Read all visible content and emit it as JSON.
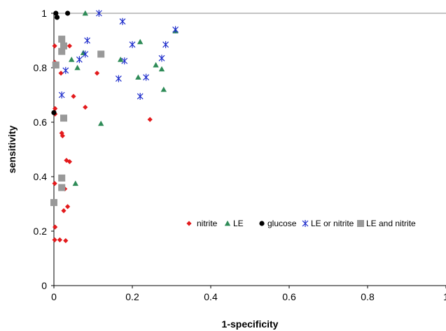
{
  "chart_data": {
    "type": "scatter",
    "title": "",
    "xlabel": "1-specificity",
    "ylabel": "sensitivity",
    "xlim": [
      0,
      1
    ],
    "ylim": [
      0,
      1
    ],
    "x_ticks": [
      "0",
      "0.2",
      "0.4",
      "0.6",
      "0.8",
      "1"
    ],
    "y_ticks": [
      "0",
      "0.2",
      "0.4",
      "0.6",
      "0.8",
      "1"
    ],
    "grid": false,
    "legend_position": "center-right",
    "series": [
      {
        "name": "nitrite",
        "marker": "diamond",
        "color": "#e31a1c",
        "points": [
          [
            0.002,
            0.88
          ],
          [
            0.002,
            0.82
          ],
          [
            0.003,
            0.65
          ],
          [
            0.003,
            0.63
          ],
          [
            0.002,
            0.375
          ],
          [
            0.003,
            0.215
          ],
          [
            0.002,
            0.168
          ],
          [
            0.015,
            0.168
          ],
          [
            0.018,
            0.78
          ],
          [
            0.02,
            0.56
          ],
          [
            0.022,
            0.55
          ],
          [
            0.028,
            0.355
          ],
          [
            0.025,
            0.275
          ],
          [
            0.032,
            0.46
          ],
          [
            0.04,
            0.455
          ],
          [
            0.035,
            0.29
          ],
          [
            0.03,
            0.165
          ],
          [
            0.04,
            0.88
          ],
          [
            0.05,
            0.695
          ],
          [
            0.08,
            0.655
          ],
          [
            0.11,
            0.78
          ],
          [
            0.245,
            0.61
          ]
        ]
      },
      {
        "name": "LE",
        "marker": "triangle",
        "color": "#2e8b57",
        "points": [
          [
            0.08,
            1.0
          ],
          [
            0.045,
            0.83
          ],
          [
            0.06,
            0.8
          ],
          [
            0.075,
            0.855
          ],
          [
            0.055,
            0.375
          ],
          [
            0.12,
            0.595
          ],
          [
            0.17,
            0.83
          ],
          [
            0.215,
            0.765
          ],
          [
            0.22,
            0.895
          ],
          [
            0.26,
            0.81
          ],
          [
            0.275,
            0.795
          ],
          [
            0.28,
            0.72
          ],
          [
            0.31,
            0.935
          ]
        ]
      },
      {
        "name": "glucose",
        "marker": "circle",
        "color": "#000000",
        "points": [
          [
            0.0,
            0.635
          ],
          [
            0.005,
            1.0
          ],
          [
            0.008,
            0.985
          ],
          [
            0.035,
            1.0
          ]
        ]
      },
      {
        "name": "LE or nitrite",
        "marker": "asterisk",
        "color": "#1f2ecc",
        "points": [
          [
            0.115,
            1.0
          ],
          [
            0.02,
            0.7
          ],
          [
            0.03,
            0.79
          ],
          [
            0.065,
            0.83
          ],
          [
            0.08,
            0.85
          ],
          [
            0.085,
            0.9
          ],
          [
            0.165,
            0.76
          ],
          [
            0.175,
            0.97
          ],
          [
            0.18,
            0.825
          ],
          [
            0.2,
            0.885
          ],
          [
            0.22,
            0.695
          ],
          [
            0.235,
            0.765
          ],
          [
            0.275,
            0.835
          ],
          [
            0.285,
            0.885
          ],
          [
            0.31,
            0.94
          ]
        ]
      },
      {
        "name": "LE and nitrite",
        "marker": "square",
        "color": "#999999",
        "points": [
          [
            0.0,
            0.305
          ],
          [
            0.005,
            0.81
          ],
          [
            0.02,
            0.905
          ],
          [
            0.02,
            0.86
          ],
          [
            0.025,
            0.88
          ],
          [
            0.025,
            0.615
          ],
          [
            0.02,
            0.395
          ],
          [
            0.02,
            0.36
          ],
          [
            0.12,
            0.85
          ]
        ]
      }
    ]
  }
}
